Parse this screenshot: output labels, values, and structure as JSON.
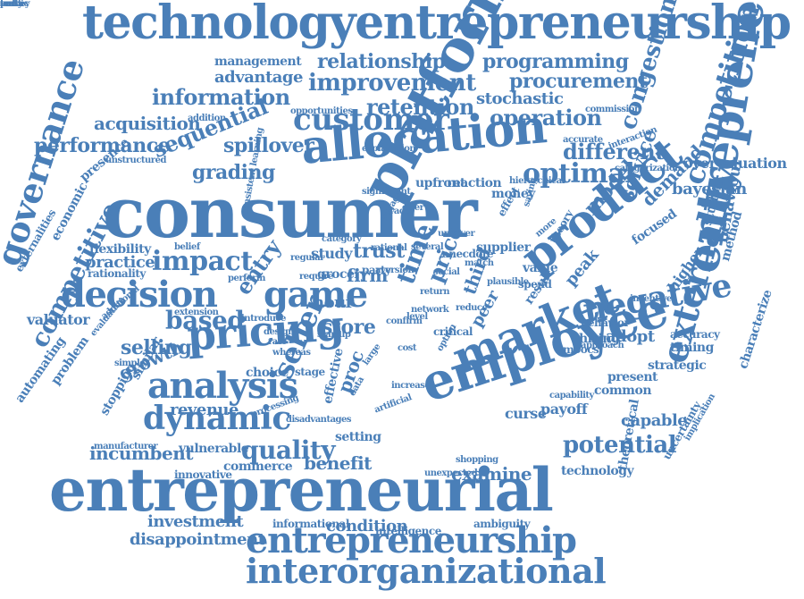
{
  "word_cloud": {
    "color": "#4a7fb8",
    "words": [
      "technologyentrepreneurship",
      "consumer",
      "entrepreneurial",
      "platform",
      "employee",
      "allocation",
      "market",
      "pricing",
      "product",
      "entrepreneur",
      "analysis",
      "dynamic",
      "decision",
      "game",
      "entrepreneurship",
      "interorganizational",
      "customer",
      "governance",
      "externality",
      "negative",
      "impact",
      "competitive",
      "competition",
      "improvement",
      "relationship",
      "programming",
      "information",
      "procurement",
      "retention",
      "operation",
      "optimal",
      "seller",
      "quality",
      "potential",
      "incumbent",
      "acquisition",
      "performance",
      "sequential",
      "grading",
      "spillover",
      "congestion",
      "different",
      "service",
      "demand",
      "management",
      "advantage",
      "stochastic",
      "bayesian",
      "entry",
      "hour",
      "firm",
      "trust",
      "price",
      "store",
      "proc",
      "time",
      "peak",
      "examine",
      "benefit",
      "revenue",
      "based",
      "selling",
      "growth",
      "condition",
      "investment",
      "disappointment",
      "model",
      "behaviour",
      "practice",
      "valuator",
      "flexibility",
      "rationality",
      "economic",
      "presence",
      "automating",
      "problem",
      "externalities",
      "capable",
      "timing",
      "strategic",
      "present",
      "common",
      "payoff",
      "curse",
      "higher",
      "adopt",
      "third",
      "peer",
      "overvaluation",
      "student",
      "method",
      "characterize",
      "uncertainty",
      "theoretical",
      "technology",
      "ambiguity",
      "intelligence",
      "informational",
      "commerce",
      "innovative",
      "vulnerable",
      "manufacturer",
      "stopping",
      "similar",
      "choice",
      "stage",
      "setting",
      "effective",
      "money",
      "upfront",
      "reaction",
      "effect",
      "hiring",
      "moocs",
      "focused",
      "accuracy",
      "behavior",
      "result",
      "theory",
      "supplier",
      "grocery",
      "study",
      "party",
      "value",
      "spend",
      "saving",
      "accurate",
      "interaction",
      "commission",
      "opportunities",
      "explanation",
      "addition",
      "unstructured",
      "categorization",
      "hierarchical",
      "significant",
      "approach",
      "incentive",
      "implication",
      "capability",
      "unexpected",
      "shopping",
      "artificial",
      "increase",
      "simple",
      "introduce",
      "design",
      "whereas",
      "perform",
      "belief",
      "consistent learning",
      "extension",
      "additional",
      "evaluation",
      "processing",
      "disadvantages",
      "anecdote",
      "plausible",
      "more",
      "aversion",
      "several",
      "regular",
      "category",
      "require",
      "rational",
      "startup",
      "critical",
      "confirm",
      "level",
      "cost",
      "data",
      "network",
      "option",
      "large",
      "reduce",
      "return",
      "engage",
      "trade",
      "uncover",
      "offer",
      "rate",
      "social",
      "match",
      "public",
      "survey",
      "learn",
      "test",
      "early"
    ]
  }
}
